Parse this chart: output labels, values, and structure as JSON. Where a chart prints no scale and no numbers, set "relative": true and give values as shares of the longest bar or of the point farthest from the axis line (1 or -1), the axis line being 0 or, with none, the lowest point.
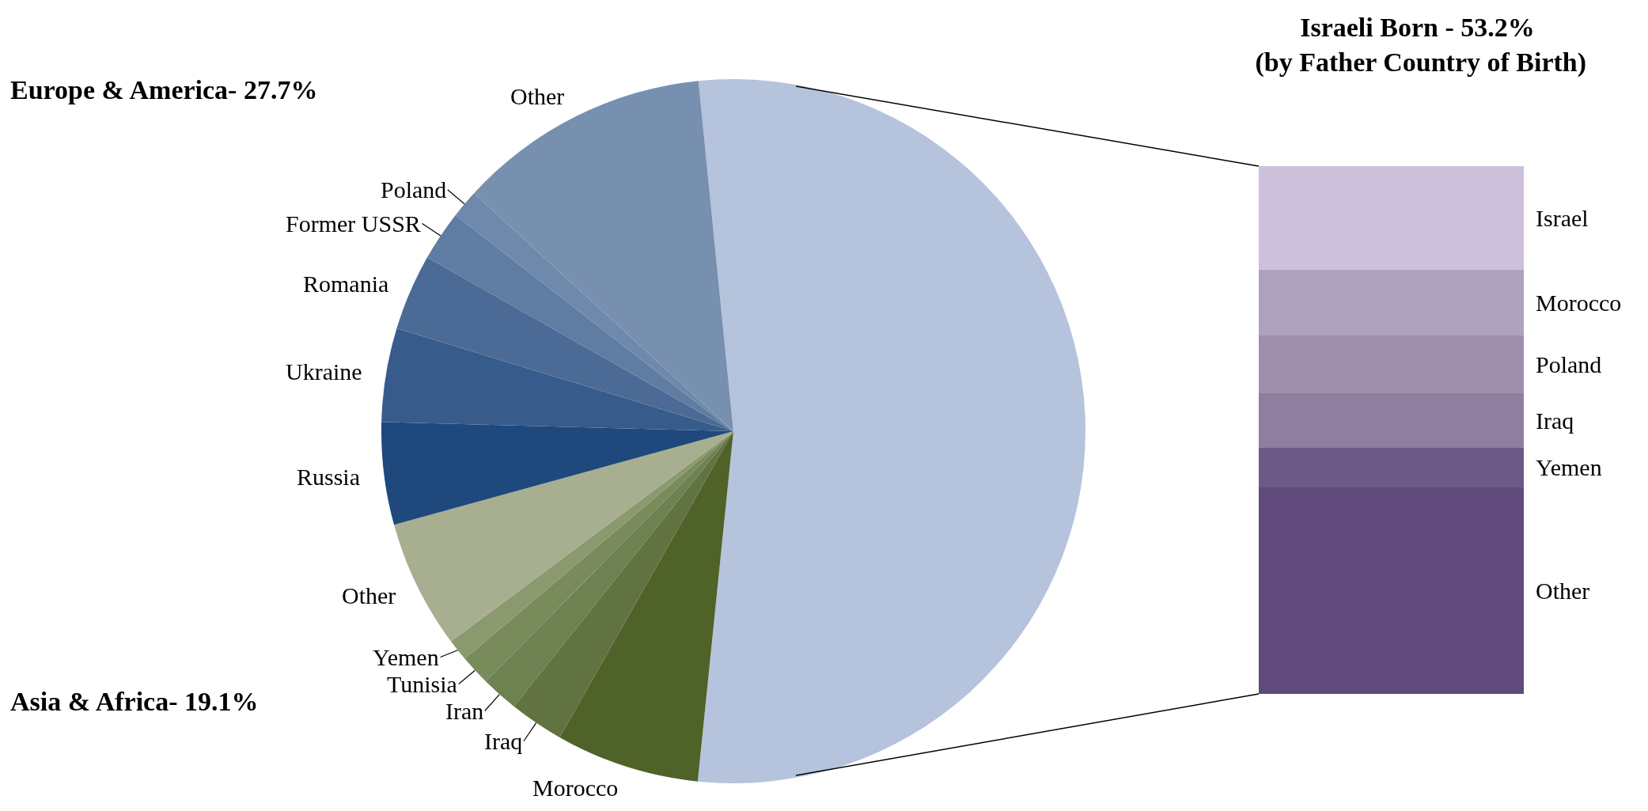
{
  "chart_data": [
    {
      "type": "pie",
      "categories": [
        null,
        "Morocco",
        "Iraq",
        "Iran",
        "Tunisia",
        "Yemen",
        "Other",
        "Russia",
        "Ukraine",
        "Romania",
        "Former USSR",
        "Poland",
        "Other"
      ],
      "values": [
        53.2,
        6.6,
        2.5,
        1.7,
        1.4,
        1.0,
        5.9,
        4.7,
        4.3,
        3.5,
        2.3,
        1.3,
        11.6
      ],
      "colors": [
        "#b6c3dd",
        "#4f6228",
        "#617340",
        "#6e8150",
        "#7a8b5b",
        "#8a9a6e",
        "#a7af90",
        "#1f497d",
        "#375b8a",
        "#4b6b96",
        "#5f7ca2",
        "#6f89ad",
        "#7890b0"
      ],
      "annotations": [
        "Europe & America- 27.7%",
        "Asia & Africa- 19.1%"
      ]
    },
    {
      "type": "bar",
      "stacked": true,
      "relative": true,
      "title": "Israeli Born - 53.2%\n (by Father Country of Birth)",
      "categories": [
        null
      ],
      "series": [
        {
          "name": "Other",
          "color": "#604a7b",
          "values": [
            0.391
          ]
        },
        {
          "name": "Yemen",
          "color": "#6c5a86",
          "values": [
            0.076
          ]
        },
        {
          "name": "Iraq",
          "color": "#8e7e9f",
          "values": [
            0.102
          ]
        },
        {
          "name": "Poland",
          "color": "#9f8fac",
          "values": [
            0.11
          ]
        },
        {
          "name": "Morocco",
          "color": "#aea3bd",
          "values": [
            0.124
          ]
        },
        {
          "name": "Israel",
          "color": "#ccc0da",
          "values": [
            0.197
          ]
        }
      ]
    }
  ]
}
